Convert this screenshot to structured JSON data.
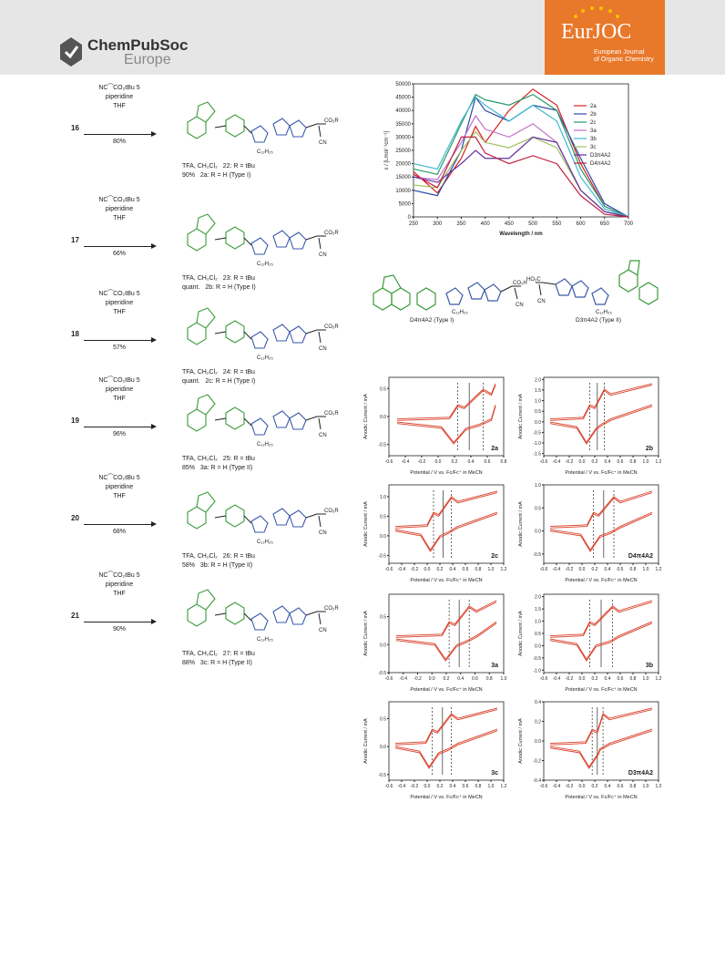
{
  "header": {
    "publisher_brand": "ChemPubSoc",
    "publisher_region": "Europe",
    "journal_logo": "EurJOC",
    "journal_desc_line1": "European Journal",
    "journal_desc_line2": "of Organic Chemistry"
  },
  "scheme": {
    "steps": [
      {
        "num": "16",
        "reag1": "NC⁀CO₂tBu 5",
        "reag2": "piperidine",
        "reag3": "THF",
        "yield": "80%",
        "tfa": "TFA, CH₂Cl₂",
        "tfa_yield": "90%",
        "cmpd1": "22: R = tBu",
        "cmpd2": "2a: R = H (Type I)"
      },
      {
        "num": "17",
        "reag1": "NC⁀CO₂tBu 5",
        "reag2": "piperidine",
        "reag3": "THF",
        "yield": "66%",
        "tfa": "TFA, CH₂Cl₂",
        "tfa_yield": "quant.",
        "cmpd1": "23: R = tBu",
        "cmpd2": "2b: R = H (Type I)"
      },
      {
        "num": "18",
        "reag1": "NC⁀CO₂tBu 5",
        "reag2": "piperidine",
        "reag3": "THF",
        "yield": "57%",
        "tfa": "TFA, CH₂Cl₂",
        "tfa_yield": "quant.",
        "cmpd1": "24: R = tBu",
        "cmpd2": "2c: R = H (Type I)"
      },
      {
        "num": "19",
        "reag1": "NC⁀CO₂tBu 5",
        "reag2": "piperidine",
        "reag3": "THF",
        "yield": "96%",
        "tfa": "TFA, CH₂Cl₂",
        "tfa_yield": "85%",
        "cmpd1": "25: R = tBu",
        "cmpd2": "3a: R = H (Type II)"
      },
      {
        "num": "20",
        "reag1": "NC⁀CO₂tBu 5",
        "reag2": "piperidine",
        "reag3": "THF",
        "yield": "68%",
        "tfa": "TFA, CH₂Cl₂",
        "tfa_yield": "58%",
        "cmpd1": "26: R = tBu",
        "cmpd2": "3b: R = H (Type II)"
      },
      {
        "num": "21",
        "reag1": "NC⁀CO₂tBu 5",
        "reag2": "piperidine",
        "reag3": "THF",
        "yield": "90%",
        "tfa": "TFA, CH₂Cl₂",
        "tfa_yield": "88%",
        "cmpd1": "27: R = tBu",
        "cmpd2": "3c: R = H (Type II)"
      }
    ]
  },
  "structures": {
    "left_label": "D4π4A2 (Type I)",
    "right_label": "D3π4A2 (Type II)"
  },
  "colors": {
    "accent_orange": "#e8782a",
    "donor_green": "#3a9a3a",
    "pi_blue": "#3a5aa8",
    "cv_red": "#d8402a"
  },
  "chart_data": [
    {
      "type": "line",
      "ylabel": "ε / [Lmol⁻¹cm⁻¹]",
      "xlabel": "Wavelength / nm",
      "xlim": [
        250,
        700
      ],
      "ylim": [
        0,
        50000
      ],
      "x_ticks": [
        250,
        300,
        350,
        400,
        450,
        500,
        550,
        600,
        650,
        700
      ],
      "y_ticks": [
        0,
        5000,
        10000,
        15000,
        20000,
        25000,
        30000,
        35000,
        40000,
        45000,
        50000
      ],
      "legend_position": "right",
      "x": [
        250,
        300,
        350,
        380,
        400,
        450,
        500,
        550,
        600,
        650,
        700
      ],
      "series": [
        {
          "name": "2a",
          "color": "#d62020",
          "values": [
            17000,
            9000,
            22000,
            34000,
            28000,
            40000,
            48000,
            42000,
            20000,
            4000,
            0
          ]
        },
        {
          "name": "2b",
          "color": "#2a4aa8",
          "values": [
            10000,
            8000,
            25000,
            45000,
            40000,
            36000,
            42000,
            40000,
            22000,
            5000,
            0
          ]
        },
        {
          "name": "2c",
          "color": "#2a9a6a",
          "values": [
            18000,
            16000,
            35000,
            46000,
            44000,
            42000,
            46000,
            40000,
            18000,
            4000,
            0
          ]
        },
        {
          "name": "3a",
          "color": "#c070c8",
          "values": [
            15000,
            14000,
            28000,
            38000,
            33000,
            30000,
            35000,
            28000,
            10000,
            2000,
            0
          ]
        },
        {
          "name": "3b",
          "color": "#40b8d0",
          "values": [
            20000,
            18000,
            36000,
            45000,
            42000,
            36000,
            42000,
            36000,
            15000,
            3000,
            0
          ]
        },
        {
          "name": "3c",
          "color": "#a0c060",
          "values": [
            12000,
            11000,
            25000,
            32000,
            28000,
            26000,
            30000,
            26000,
            10000,
            2000,
            0
          ]
        },
        {
          "name": "D3π4A2",
          "color": "#6030a0",
          "values": [
            15000,
            13000,
            20000,
            25000,
            22000,
            22000,
            30000,
            28000,
            10000,
            2000,
            0
          ]
        },
        {
          "name": "D4π4A2",
          "color": "#c02040",
          "values": [
            16000,
            11000,
            30000,
            30000,
            24000,
            20000,
            23000,
            20000,
            8000,
            1000,
            0
          ]
        }
      ]
    },
    {
      "type": "line",
      "label": "2a",
      "xlabel": "Potential / V vs. Fc/Fc⁺ in MeCN",
      "ylabel": "Anodic Current / mA",
      "xlim": [
        -0.6,
        0.8
      ],
      "ylim": [
        -0.7,
        0.7
      ],
      "x_ticks": [
        -0.6,
        -0.4,
        -0.2,
        0.0,
        0.2,
        0.4,
        0.6,
        0.8
      ],
      "y_ticks": [
        -0.5,
        0.0,
        0.5
      ],
      "dashed_at": [
        0.24,
        0.55
      ],
      "solid_at": [
        0.38
      ]
    },
    {
      "type": "line",
      "label": "2b",
      "xlabel": "Potential / V vs. Fc/Fc⁺ in MeCN",
      "ylabel": "Anodic Current / mA",
      "xlim": [
        -0.6,
        1.2
      ],
      "ylim": [
        -1.6,
        2.1
      ],
      "x_ticks": [
        -0.6,
        -0.4,
        -0.2,
        0.0,
        0.2,
        0.4,
        0.6,
        0.8,
        1.0,
        1.2
      ],
      "y_ticks": [
        -1.5,
        -1.0,
        -0.5,
        0.0,
        0.5,
        1.0,
        1.5,
        2.0
      ],
      "dashed_at": [
        0.12,
        0.35
      ],
      "solid_at": [
        0.24
      ]
    },
    {
      "type": "line",
      "label": "2c",
      "xlabel": "Potential / V vs. Fc/Fc⁺ in MeCN",
      "ylabel": "Anodic Current / mA",
      "xlim": [
        -0.6,
        1.2
      ],
      "ylim": [
        -0.7,
        1.3
      ],
      "x_ticks": [
        -0.6,
        -0.4,
        -0.2,
        0.0,
        0.2,
        0.4,
        0.6,
        0.8,
        1.0,
        1.2
      ],
      "y_ticks": [
        -0.5,
        0.0,
        0.5,
        1.0
      ],
      "dashed_at": [
        0.1,
        0.38
      ],
      "solid_at": [
        0.25
      ]
    },
    {
      "type": "line",
      "label": "D4π4A2",
      "xlabel": "Potential / V vs. Fc/Fc⁺ in MeCN",
      "ylabel": "Anodic Current / mA",
      "xlim": [
        -0.6,
        1.2
      ],
      "ylim": [
        -0.7,
        1.0
      ],
      "x_ticks": [
        -0.6,
        -0.4,
        -0.2,
        0.0,
        0.2,
        0.4,
        0.6,
        0.8,
        1.0,
        1.2
      ],
      "y_ticks": [
        -0.5,
        0.0,
        0.5,
        1.0
      ],
      "dashed_at": [
        0.18,
        0.5
      ],
      "solid_at": [
        0.34
      ]
    },
    {
      "type": "line",
      "label": "3a",
      "xlabel": "Potential / V vs. Fc/Fc⁺ in MeCN",
      "ylabel": "Anodic Current / mA",
      "xlim": [
        -0.6,
        1.0
      ],
      "ylim": [
        -0.5,
        0.9
      ],
      "x_ticks": [
        -0.6,
        -0.4,
        -0.2,
        0.0,
        0.2,
        0.4,
        0.6,
        0.8,
        1.0
      ],
      "y_ticks": [
        -0.5,
        0.0,
        0.5
      ],
      "dashed_at": [
        0.24,
        0.52
      ],
      "solid_at": [
        0.38
      ]
    },
    {
      "type": "line",
      "label": "3b",
      "xlabel": "Potential / V vs. Fc/Fc⁺ in MeCN",
      "ylabel": "Anodic Current / mA",
      "xlim": [
        -0.6,
        1.2
      ],
      "ylim": [
        -1.1,
        2.1
      ],
      "x_ticks": [
        -0.6,
        -0.4,
        -0.2,
        0.0,
        0.2,
        0.4,
        0.6,
        0.8,
        1.0,
        1.2
      ],
      "y_ticks": [
        -1.0,
        -0.5,
        0.0,
        0.5,
        1.0,
        1.5,
        2.0
      ],
      "dashed_at": [
        0.12,
        0.48
      ],
      "solid_at": [
        0.3
      ]
    },
    {
      "type": "line",
      "label": "3c",
      "xlabel": "Potential / V vs. Fc/Fc⁺ in MeCN",
      "ylabel": "Anodic Current / mA",
      "xlim": [
        -0.6,
        1.2
      ],
      "ylim": [
        -0.6,
        0.8
      ],
      "x_ticks": [
        -0.6,
        -0.4,
        -0.2,
        0.0,
        0.2,
        0.4,
        0.6,
        0.8,
        1.0,
        1.2
      ],
      "y_ticks": [
        -0.5,
        0.0,
        0.5
      ],
      "dashed_at": [
        0.08,
        0.38
      ],
      "solid_at": [
        0.24
      ]
    },
    {
      "type": "line",
      "label": "D3π4A2",
      "xlabel": "Potential / V vs. Fc/Fc⁺ in MeCN",
      "ylabel": "Anodic Current / mA",
      "xlim": [
        -0.6,
        1.2
      ],
      "ylim": [
        -0.4,
        0.4
      ],
      "x_ticks": [
        -0.6,
        -0.4,
        -0.2,
        0.0,
        0.2,
        0.4,
        0.6,
        0.8,
        1.0,
        1.2
      ],
      "y_ticks": [
        -0.4,
        -0.2,
        0.0,
        0.2,
        0.4
      ],
      "dashed_at": [
        0.16,
        0.33
      ],
      "solid_at": [
        0.24
      ]
    }
  ]
}
